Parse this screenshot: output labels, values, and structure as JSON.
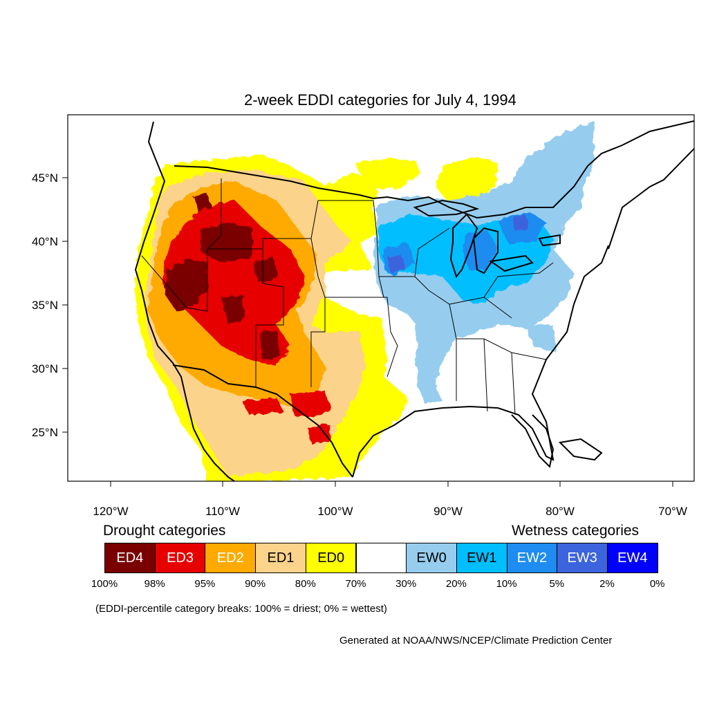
{
  "title": "2-week EDDI categories for July 4, 1994",
  "axes": {
    "lat_labels": [
      "45°N",
      "40°N",
      "35°N",
      "30°N",
      "25°N"
    ],
    "lon_labels": [
      "120°W",
      "110°W",
      "100°W",
      "90°W",
      "80°W",
      "70°W"
    ]
  },
  "legend": {
    "drought_heading": "Drought categories",
    "wetness_heading": "Wetness categories",
    "categories": [
      {
        "label": "ED4",
        "color": "#7a0000",
        "text_color": "#ffffff"
      },
      {
        "label": "ED3",
        "color": "#e60000",
        "text_color": "#ffffff"
      },
      {
        "label": "ED2",
        "color": "#ffaa00",
        "text_color": "#ffffff"
      },
      {
        "label": "ED1",
        "color": "#fcd38a",
        "text_color": "#000000"
      },
      {
        "label": "ED0",
        "color": "#ffff00",
        "text_color": "#000000"
      },
      {
        "label": "",
        "color": "#ffffff",
        "text_color": "#000000"
      },
      {
        "label": "EW0",
        "color": "#96cdee",
        "text_color": "#000000"
      },
      {
        "label": "EW1",
        "color": "#00beff",
        "text_color": "#000000"
      },
      {
        "label": "EW2",
        "color": "#1e8cf0",
        "text_color": "#ffffff"
      },
      {
        "label": "EW3",
        "color": "#3c64dc",
        "text_color": "#ffffff"
      },
      {
        "label": "EW4",
        "color": "#0000ff",
        "text_color": "#ffffff"
      }
    ],
    "breaks": [
      "100%",
      "98%",
      "95%",
      "90%",
      "80%",
      "70%",
      "30%",
      "20%",
      "10%",
      "5%",
      "2%",
      "0%"
    ],
    "note": "(EDDI-percentile category breaks: 100% = driest; 0% = wettest)"
  },
  "credit": "Generated at NOAA/NWS/NCEP/Climate Prediction Center"
}
